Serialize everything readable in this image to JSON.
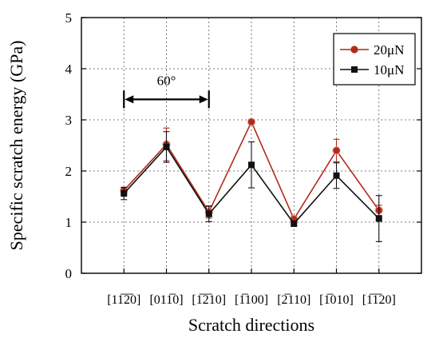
{
  "chart_data": {
    "type": "line",
    "categories": [
      "[11̅2̅0]",
      "[011̅0]",
      "[1̅2̅10]",
      "[1̅100]",
      "[2̅110]",
      "[1̅010]",
      "[1̅1̅20]"
    ],
    "series": [
      {
        "name": "20μN",
        "color": "#b22a1a",
        "marker": "circle",
        "values": [
          1.62,
          2.52,
          1.2,
          2.96,
          1.06,
          2.4,
          1.23
        ],
        "errors": [
          0.06,
          0.32,
          0.12,
          0.05,
          0.06,
          0.22,
          0.1
        ]
      },
      {
        "name": "10μN",
        "color": "#111111",
        "marker": "square",
        "values": [
          1.56,
          2.47,
          1.16,
          2.12,
          0.97,
          1.91,
          1.07
        ],
        "errors": [
          0.12,
          0.3,
          0.15,
          0.45,
          0.05,
          0.25,
          0.45
        ]
      }
    ],
    "title": "",
    "xlabel": "Scratch directions",
    "ylabel": "Specific scratch energy (GPa)",
    "ylim": [
      0,
      5
    ],
    "yticks": [
      0,
      1,
      2,
      3,
      4,
      5
    ],
    "grid": true,
    "legend_position": "top-right",
    "annotation": {
      "text": "60°",
      "from_category": 0,
      "to_category": 2,
      "y": 3.4
    }
  }
}
